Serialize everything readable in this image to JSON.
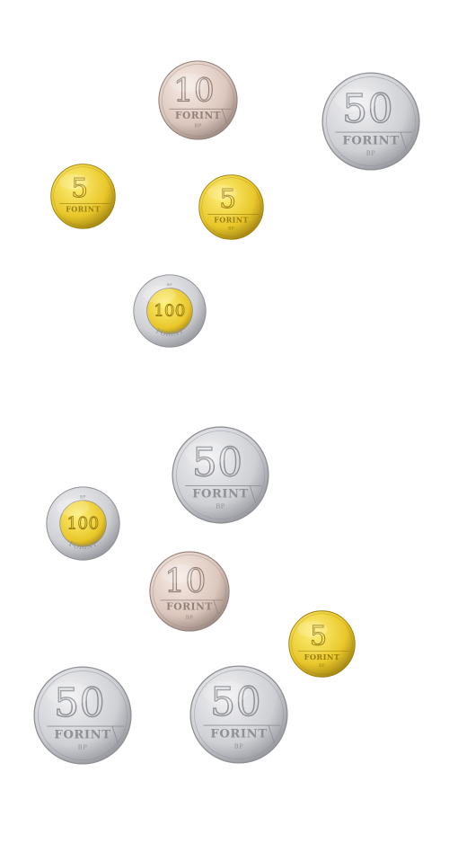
{
  "coins": [
    {
      "id": "c1",
      "type": "10",
      "numeral": "10",
      "label": "FORINT",
      "mint": "BP"
    },
    {
      "id": "c2",
      "type": "50",
      "numeral": "50",
      "label": "FORINT",
      "mint": "BP"
    },
    {
      "id": "c3",
      "type": "5",
      "numeral": "5",
      "label": "FORINT",
      "mint": ""
    },
    {
      "id": "c4",
      "type": "5",
      "numeral": "5",
      "label": "FORINT",
      "mint": "BP"
    },
    {
      "id": "c5",
      "type": "100",
      "numeral": "100",
      "label": "FORINT",
      "mint": "BP"
    },
    {
      "id": "c6",
      "type": "50",
      "numeral": "50",
      "label": "FORINT",
      "mint": "BP"
    },
    {
      "id": "c7",
      "type": "100",
      "numeral": "100",
      "label": "FORINT",
      "mint": "BP"
    },
    {
      "id": "c8",
      "type": "10",
      "numeral": "10",
      "label": "FORINT",
      "mint": "BP"
    },
    {
      "id": "c9",
      "type": "5",
      "numeral": "5",
      "label": "FORINT",
      "mint": "BP"
    },
    {
      "id": "c10",
      "type": "50",
      "numeral": "50",
      "label": "FORINT",
      "mint": "BP"
    },
    {
      "id": "c11",
      "type": "50",
      "numeral": "50",
      "label": "FORINT",
      "mint": "BP"
    }
  ],
  "colors": {
    "background": "#ffffff",
    "silver_light": "#f1f1f3",
    "silver_mid": "#cfd0d4",
    "silver_dark": "#8e9096",
    "brass_light": "#fff07a",
    "brass_mid": "#e8c72a",
    "brass_dark": "#9b7d10",
    "copper_light": "#f7ece6",
    "copper_mid": "#dcc7bd",
    "copper_dark": "#93817a"
  }
}
